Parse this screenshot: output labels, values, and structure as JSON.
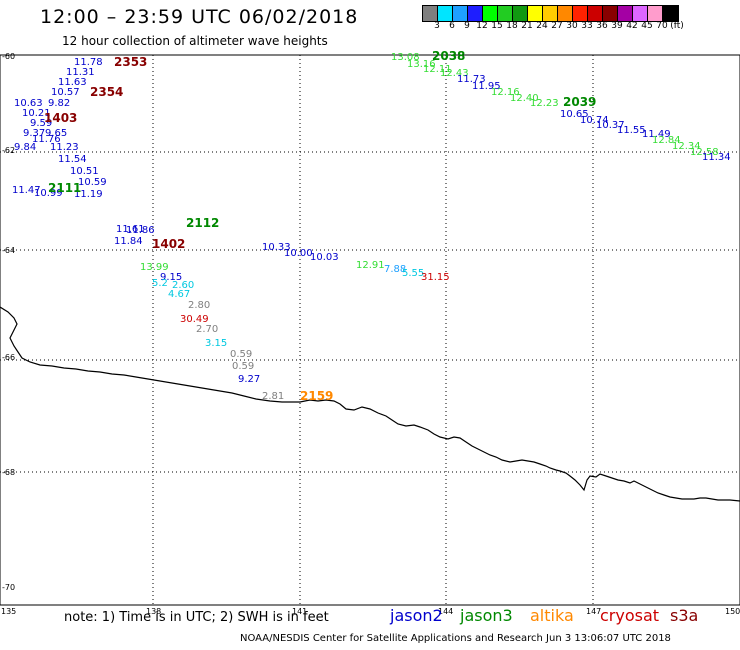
{
  "header": {
    "title": "12:00 – 23:59 UTC 06/02/2018",
    "subtitle": "12 hour collection of altimeter wave heights"
  },
  "colorbar": {
    "colors": [
      "#7f7f7f",
      "#00e5ff",
      "#1ea0ff",
      "#1e1eff",
      "#00ff00",
      "#22cc22",
      "#119911",
      "#ffff00",
      "#ffcc00",
      "#ff8800",
      "#ff2200",
      "#cc0000",
      "#880000",
      "#a400a4",
      "#dd66ff",
      "#ff9ccc",
      "#000000"
    ],
    "ticks": [
      "3",
      "6",
      "9",
      "12",
      "15",
      "18",
      "21",
      "24",
      "27",
      "30",
      "33",
      "36",
      "39",
      "42",
      "45",
      "70",
      "(ft)"
    ]
  },
  "axes": {
    "lat_labels": [
      "-60",
      "-62",
      "-64",
      "-66",
      "-68",
      "-70"
    ],
    "lon_labels": [
      "135",
      "138",
      "141",
      "144",
      "147",
      "150"
    ]
  },
  "footer": {
    "note": "note: 1) Time is in UTC; 2) SWH is in feet",
    "satellites": [
      {
        "name": "jason2",
        "color": "#0000cc"
      },
      {
        "name": "jason3",
        "color": "#008800"
      },
      {
        "name": "altika",
        "color": "#ff8800"
      },
      {
        "name": "cryosat",
        "color": "#cc0000"
      },
      {
        "name": "s3a",
        "color": "#880000"
      }
    ],
    "credit": "NOAA/NESDIS Center for Satellite Applications and Research   Jun  3 13:06:07 UTC 2018"
  },
  "map": {
    "times": [
      {
        "text": "2353",
        "color": "#880000"
      },
      {
        "text": "2354",
        "color": "#880000"
      },
      {
        "text": "1403",
        "color": "#880000"
      },
      {
        "text": "2111",
        "color": "#008800"
      },
      {
        "text": "2112",
        "color": "#008800"
      },
      {
        "text": "1402",
        "color": "#880000"
      },
      {
        "text": "2038",
        "color": "#008800"
      },
      {
        "text": "2039",
        "color": "#008800"
      },
      {
        "text": "2159",
        "color": "#ff8800"
      }
    ],
    "readings": [
      {
        "text": "11.78",
        "color": "#0000cc"
      },
      {
        "text": "11.31",
        "color": "#0000cc"
      },
      {
        "text": "11.63",
        "color": "#0000cc"
      },
      {
        "text": "10.57",
        "color": "#0000cc"
      },
      {
        "text": "10.63",
        "color": "#0000cc"
      },
      {
        "text": "9.82",
        "color": "#0000cc"
      },
      {
        "text": "10.21",
        "color": "#0000cc"
      },
      {
        "text": "9.59",
        "color": "#0000cc"
      },
      {
        "text": "9.37",
        "color": "#0000cc"
      },
      {
        "text": "9.65",
        "color": "#0000cc"
      },
      {
        "text": "11.76",
        "color": "#0000cc"
      },
      {
        "text": "9.84",
        "color": "#0000cc"
      },
      {
        "text": "11.23",
        "color": "#0000cc"
      },
      {
        "text": "11.54",
        "color": "#0000cc"
      },
      {
        "text": "10.51",
        "color": "#0000cc"
      },
      {
        "text": "10.59",
        "color": "#0000cc"
      },
      {
        "text": "11.47",
        "color": "#0000cc"
      },
      {
        "text": "10.99",
        "color": "#0000cc"
      },
      {
        "text": "11.19",
        "color": "#0000cc"
      },
      {
        "text": "13.08",
        "color": "#33dd33"
      },
      {
        "text": "13.16",
        "color": "#33dd33"
      },
      {
        "text": "12.11",
        "color": "#33dd33"
      },
      {
        "text": "12.43",
        "color": "#33dd33"
      },
      {
        "text": "11.73",
        "color": "#0000cc"
      },
      {
        "text": "11.95",
        "color": "#0000cc"
      },
      {
        "text": "12.16",
        "color": "#33dd33"
      },
      {
        "text": "12.40",
        "color": "#33dd33"
      },
      {
        "text": "12.23",
        "color": "#33dd33"
      },
      {
        "text": "10.65",
        "color": "#0000cc"
      },
      {
        "text": "10.74",
        "color": "#0000cc"
      },
      {
        "text": "10.37",
        "color": "#0000cc"
      },
      {
        "text": "11.55",
        "color": "#0000cc"
      },
      {
        "text": "11.49",
        "color": "#0000cc"
      },
      {
        "text": "12.84",
        "color": "#33dd33"
      },
      {
        "text": "12.34",
        "color": "#33dd33"
      },
      {
        "text": "12.58",
        "color": "#33dd33"
      },
      {
        "text": "11.34",
        "color": "#0000cc"
      },
      {
        "text": "11.61",
        "color": "#0000cc"
      },
      {
        "text": "11.86",
        "color": "#0000cc"
      },
      {
        "text": "11.84",
        "color": "#0000cc"
      },
      {
        "text": "10.33",
        "color": "#0000cc"
      },
      {
        "text": "10.00",
        "color": "#0000cc"
      },
      {
        "text": "10.03",
        "color": "#0000cc"
      },
      {
        "text": "12.91",
        "color": "#33dd33"
      },
      {
        "text": "7.88",
        "color": "#1ea0ff"
      },
      {
        "text": "5.55",
        "color": "#00c8e0"
      },
      {
        "text": "31.15",
        "color": "#cc0000"
      },
      {
        "text": "13.99",
        "color": "#33dd33"
      },
      {
        "text": "9.15",
        "color": "#0000cc"
      },
      {
        "text": "5.2",
        "color": "#00c8e0"
      },
      {
        "text": "2.60",
        "color": "#00c8e0"
      },
      {
        "text": "4.67",
        "color": "#00c8e0"
      },
      {
        "text": "2.80",
        "color": "#7f7f7f"
      },
      {
        "text": "30.49",
        "color": "#cc0000"
      },
      {
        "text": "2.70",
        "color": "#7f7f7f"
      },
      {
        "text": "3.15",
        "color": "#00c8e0"
      },
      {
        "text": "0.59",
        "color": "#7f7f7f"
      },
      {
        "text": "0.59",
        "color": "#7f7f7f"
      },
      {
        "text": "9.27",
        "color": "#0000cc"
      },
      {
        "text": "2.81",
        "color": "#7f7f7f"
      }
    ]
  }
}
